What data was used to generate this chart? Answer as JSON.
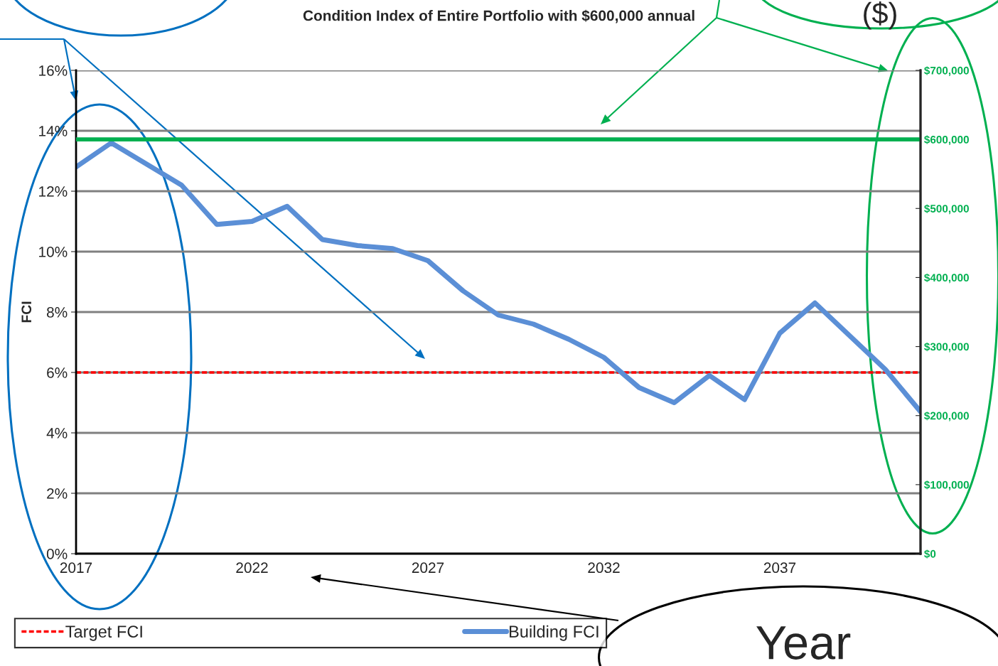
{
  "chart_data": {
    "type": "line",
    "title": "Condition Index of Entire Portfolio with $600,000 annual",
    "ylabel": "FCI",
    "x": [
      2017,
      2018,
      2019,
      2020,
      2021,
      2022,
      2023,
      2024,
      2025,
      2026,
      2027,
      2028,
      2029,
      2030,
      2031,
      2032,
      2033,
      2034,
      2035,
      2036,
      2037,
      2038,
      2039,
      2040,
      2041
    ],
    "series": [
      {
        "name": "Building FCI",
        "color": "#5b8fd6",
        "values": [
          12.8,
          13.6,
          12.9,
          12.2,
          10.9,
          11.0,
          11.5,
          10.4,
          10.2,
          10.1,
          9.7,
          8.7,
          7.9,
          7.6,
          7.1,
          6.5,
          5.5,
          5.0,
          5.9,
          5.1,
          7.3,
          8.3,
          7.2,
          6.1,
          4.7
        ]
      }
    ],
    "xlim": [
      2017,
      2041
    ],
    "xticks": [
      2017,
      2022,
      2027,
      2032,
      2037
    ],
    "ylim": [
      0,
      16
    ],
    "yticks": [
      {
        "value": 0,
        "label": "0%"
      },
      {
        "value": 2,
        "label": "2%"
      },
      {
        "value": 4,
        "label": "4%"
      },
      {
        "value": 6,
        "label": "6%"
      },
      {
        "value": 8,
        "label": "8%"
      },
      {
        "value": 10,
        "label": "10%"
      },
      {
        "value": 12,
        "label": "12%"
      },
      {
        "value": 14,
        "label": "14%"
      },
      {
        "value": 16,
        "label": "16%"
      }
    ],
    "y2lim": [
      0,
      700000
    ],
    "y2ticks": [
      {
        "value": 0,
        "label": "$0"
      },
      {
        "value": 100000,
        "label": "$100,000"
      },
      {
        "value": 200000,
        "label": "$200,000"
      },
      {
        "value": 300000,
        "label": "$300,000"
      },
      {
        "value": 400000,
        "label": "$400,000"
      },
      {
        "value": 500000,
        "label": "$500,000"
      },
      {
        "value": 600000,
        "label": "$600,000"
      },
      {
        "value": 700000,
        "label": "$700,000"
      }
    ],
    "ref_lines": [
      {
        "axis": "y",
        "value": 6,
        "label": "Target FCI",
        "color": "#ff0000",
        "line_style": "dashed"
      },
      {
        "axis": "y2",
        "value": 600000,
        "color": "#00b050",
        "line_style": "solid"
      }
    ],
    "annotations": [
      "($)",
      "Year"
    ],
    "grid": "y",
    "legend": "bottom",
    "line_style": "solid",
    "marker": "none"
  }
}
